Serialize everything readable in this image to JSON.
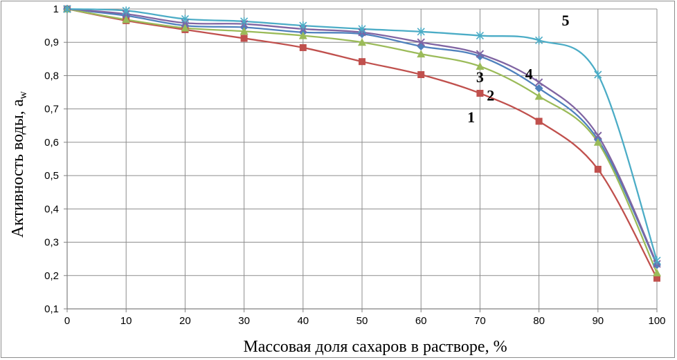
{
  "chart_data": {
    "type": "line",
    "title": "",
    "xlabel": "Массовая доля сахаров в растворе, %",
    "ylabel_main": "Активность воды, a",
    "ylabel_sub": "w",
    "xlim": [
      0,
      100
    ],
    "ylim": [
      0.1,
      1
    ],
    "x_ticks": [
      0,
      10,
      20,
      30,
      40,
      50,
      60,
      70,
      80,
      90,
      100
    ],
    "x_tick_labels": [
      "0",
      "10",
      "20",
      "30",
      "40",
      "50",
      "60",
      "70",
      "80",
      "90",
      "100"
    ],
    "y_ticks": [
      0.1,
      0.2,
      0.3,
      0.4,
      0.5,
      0.6,
      0.7,
      0.8,
      0.9,
      1
    ],
    "y_tick_labels": [
      "0,1",
      "0,2",
      "0,3",
      "0,4",
      "0,5",
      "0,6",
      "0,7",
      "0,8",
      "0,9",
      "1"
    ],
    "grid": true,
    "legend": "none",
    "x": [
      0,
      10,
      20,
      30,
      40,
      50,
      60,
      70,
      80,
      90,
      100
    ],
    "series": [
      {
        "label": "1",
        "color": "#c0504d",
        "marker": "square",
        "values": [
          1.0,
          0.965,
          0.938,
          0.912,
          0.884,
          0.842,
          0.803,
          0.747,
          0.663,
          0.519,
          0.192
        ]
      },
      {
        "label": "2",
        "color": "#4f81bd",
        "marker": "diamond",
        "values": [
          1.0,
          0.98,
          0.95,
          0.945,
          0.93,
          0.925,
          0.888,
          0.858,
          0.762,
          0.608,
          0.232
        ]
      },
      {
        "label": "3",
        "color": "#9bbb59",
        "marker": "triangle",
        "values": [
          1.0,
          0.968,
          0.943,
          0.933,
          0.92,
          0.9,
          0.865,
          0.828,
          0.738,
          0.6,
          0.208
        ]
      },
      {
        "label": "4",
        "color": "#8064a2",
        "marker": "x",
        "values": [
          1.0,
          0.985,
          0.958,
          0.955,
          0.94,
          0.93,
          0.9,
          0.865,
          0.78,
          0.62,
          0.235
        ]
      },
      {
        "label": "5",
        "color": "#4bacc6",
        "marker": "star",
        "values": [
          1.0,
          0.995,
          0.97,
          0.963,
          0.95,
          0.94,
          0.932,
          0.92,
          0.906,
          0.803,
          0.245
        ]
      }
    ],
    "annotations": [
      {
        "text": "1",
        "x": 68.5,
        "y": 0.66
      },
      {
        "text": "2",
        "x": 71.8,
        "y": 0.725
      },
      {
        "text": "3",
        "x": 70.0,
        "y": 0.78
      },
      {
        "text": "4",
        "x": 78.3,
        "y": 0.79
      },
      {
        "text": "5",
        "x": 84.5,
        "y": 0.95
      }
    ]
  }
}
